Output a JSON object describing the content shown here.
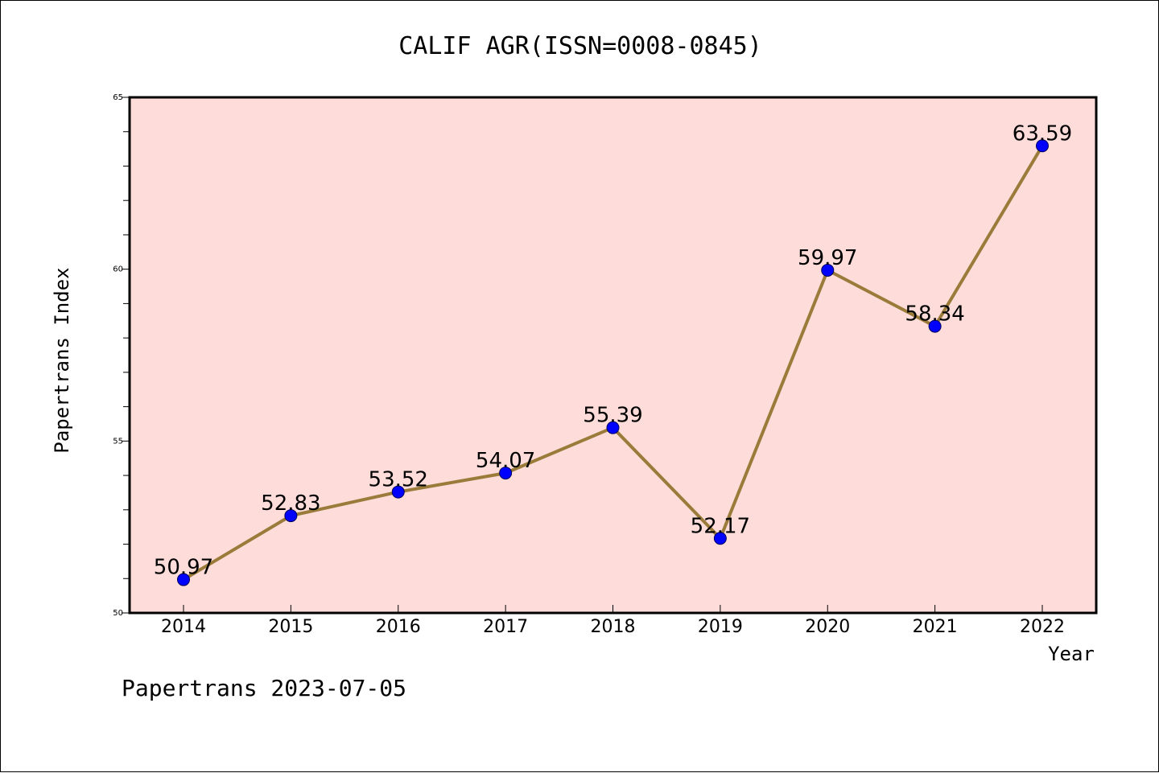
{
  "chart_data": {
    "type": "line",
    "title": "CALIF AGR(ISSN=0008-0845)",
    "xlabel": "Year",
    "ylabel": "Papertrans Index",
    "categories": [
      "2014",
      "2015",
      "2016",
      "2017",
      "2018",
      "2019",
      "2020",
      "2021",
      "2022"
    ],
    "series": [
      {
        "values": [
          50.97,
          52.83,
          53.52,
          54.07,
          55.39,
          52.17,
          59.97,
          58.34,
          63.59
        ],
        "labels": [
          "50.97",
          "52.83",
          "53.52",
          "54.07",
          "55.39",
          "52.17",
          "59.97",
          "58.34",
          "63.59"
        ]
      }
    ],
    "ylim": [
      50,
      65
    ],
    "y_ticks": [
      "50",
      "55",
      "60",
      "65"
    ],
    "y_tick_values": [
      50,
      55,
      60,
      65
    ],
    "grid": false,
    "legend": "none",
    "footer": "Papertrans 2023-07-05",
    "colors": {
      "plot_background": "#fddcd9",
      "line": "#9a7b3a",
      "marker_fill": "#0000ff",
      "marker_stroke": "#00005a",
      "axis": "#000000"
    }
  }
}
